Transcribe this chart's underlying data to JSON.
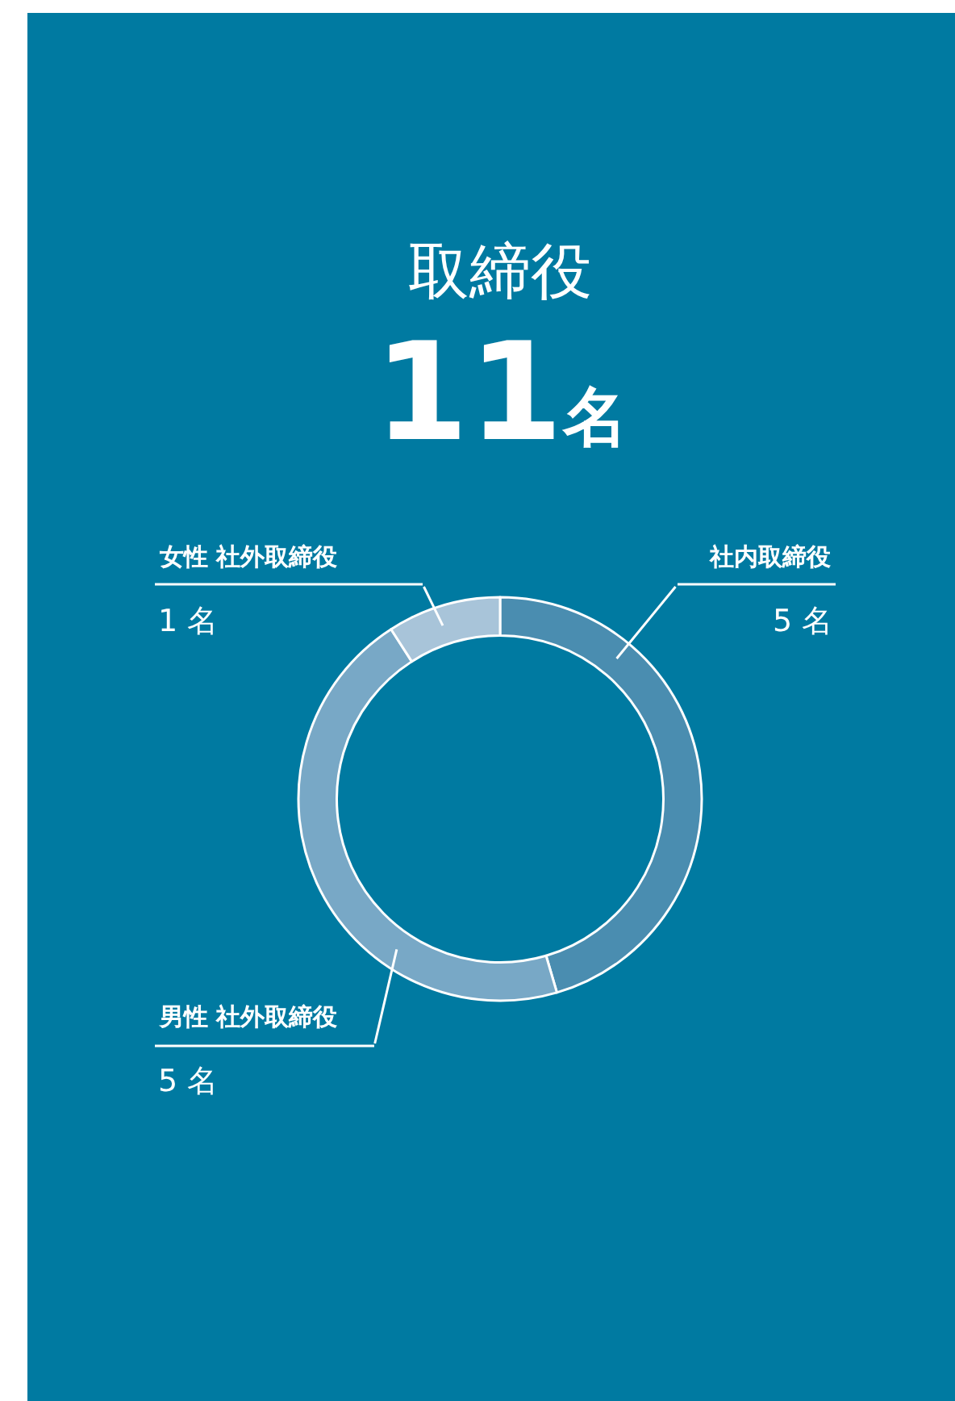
{
  "chart_data": {
    "type": "donut",
    "title": "取締役",
    "subtitle": "11名",
    "categories": [
      "社内取締役",
      "男性 社外取締役",
      "女性 社外取締役"
    ],
    "values": [
      5,
      5,
      1
    ],
    "colors": [
      "#4a8db0",
      "#78a8c6",
      "#a8c4d9"
    ],
    "value_labels": [
      "5 名",
      "5 名",
      "1 名"
    ]
  }
}
